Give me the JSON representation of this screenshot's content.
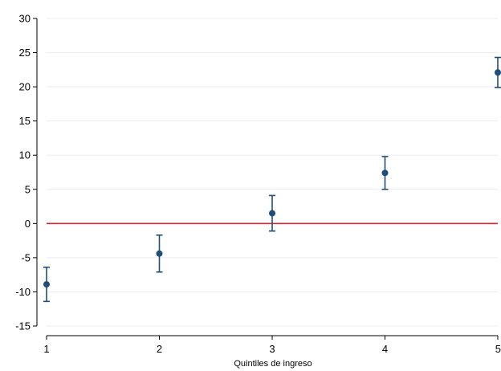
{
  "chart_data": {
    "type": "scatter",
    "title": "",
    "xlabel": "Quintiles de ingreso",
    "ylabel": "",
    "xlim": [
      1,
      5
    ],
    "ylim": [
      -15,
      30
    ],
    "x_ticks": [
      1,
      2,
      3,
      4,
      5
    ],
    "x_tick_labels": [
      "1",
      "2",
      "3",
      "4",
      "5"
    ],
    "y_ticks": [
      -15,
      -10,
      -5,
      0,
      5,
      10,
      15,
      20,
      25,
      30
    ],
    "y_tick_labels": [
      "-15",
      "-10",
      "-5",
      "0",
      "5",
      "10",
      "15",
      "20",
      "25",
      "30"
    ],
    "grid": true,
    "reference_line": {
      "y": 0,
      "color": "#e0262f"
    },
    "series": [
      {
        "color": "#1f4e79",
        "points": [
          {
            "x": 1,
            "y": -8.9,
            "lower": -11.4,
            "upper": -6.4
          },
          {
            "x": 2,
            "y": -4.4,
            "lower": -7.1,
            "upper": -1.7
          },
          {
            "x": 3,
            "y": 1.5,
            "lower": -1.1,
            "upper": 4.1
          },
          {
            "x": 4,
            "y": 7.4,
            "lower": 5.0,
            "upper": 9.8
          },
          {
            "x": 5,
            "y": 22.1,
            "lower": 19.9,
            "upper": 24.3
          }
        ]
      }
    ]
  },
  "colors": {
    "grid": "#e8eef2",
    "axis": "#000000",
    "marker": "#1f4e79",
    "reference": "#e0262f"
  }
}
